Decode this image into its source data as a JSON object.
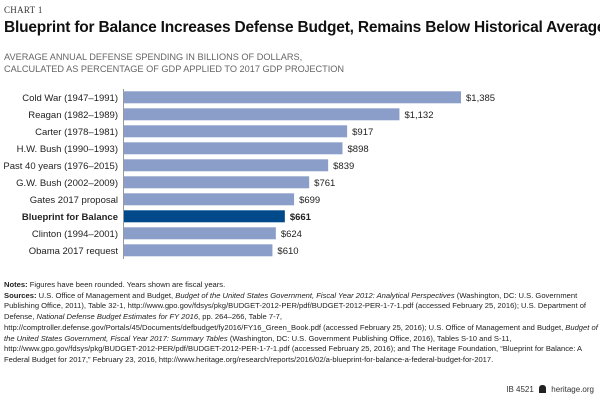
{
  "kicker": "CHART 1",
  "chart_data": {
    "type": "bar",
    "orientation": "horizontal",
    "title": "Blueprint for Balance Increases Defense Budget, Remains Below Historical Averages",
    "subtitle_lines": [
      "AVERAGE ANNUAL DEFENSE SPENDING IN BILLIONS OF DOLLARS,",
      "CALCULATED AS PERCENTAGE OF GDP APPLIED TO 2017 GDP PROJECTION"
    ],
    "categories": [
      "Cold War (1947–1991)",
      "Reagan (1982–1989)",
      "Carter (1978–1981)",
      "H.W. Bush (1990–1993)",
      "Past 40 years (1976–2015)",
      "G.W. Bush (2002–2009)",
      "Gates 2017 proposal",
      "Blueprint for Balance",
      "Clinton (1994–2001)",
      "Obama 2017 request"
    ],
    "values": [
      1385,
      1132,
      917,
      898,
      839,
      761,
      699,
      661,
      624,
      610
    ],
    "data_labels": [
      "$1,385",
      "$1,132",
      "$917",
      "$898",
      "$839",
      "$761",
      "$699",
      "$661",
      "$624",
      "$610"
    ],
    "highlight_category": "Blueprint for Balance",
    "xlim": [
      0,
      1385
    ],
    "grid": false,
    "colors": {
      "bar": "#8b9ec9",
      "highlight": "#004a8c"
    }
  },
  "notes": {
    "notes_label": "Notes:",
    "notes_text": " Figures have been rounded. Years shown are fiscal years.",
    "sources_label": "Sources:",
    "s1": " U.S. Office of Management and Budget, ",
    "s1i": "Budget of the United States Government, Fiscal Year 2012: Analytical Perspectives",
    "s2": " (Washington, DC: U.S. Government Publishing Office, 2011), Table 32-1, http://www.gpo.gov/fdsys/pkg/BUDGET-2012-PER/pdf/BUDGET-2012-PER-1-7-1.pdf (accessed February 25, 2016); U.S. Department of Defense, ",
    "s2i": "National Defense Budget Estimates for FY 2016",
    "s3": ", pp. 264–266, Table 7-7, http://comptroller.defense.gov/Portals/45/Documents/defbudget/fy2016/FY16_Green_Book.pdf (accessed February 25, 2016); U.S. Office of Management and Budget, ",
    "s3i": "Budget of the United States Government, Fiscal Year 2017: Summary Tables",
    "s4": " (Washington, DC: U.S. Government Publishing Office, 2016), Tables S-10 and S-11, http://www.gpo.gov/fdsys/pkg/BUDGET-2012-PER/pdf/BUDGET-2012-PER-1-7-1.pdf (accessed February 25, 2016); and The Heritage Foundation, “Blueprint for Balance: A Federal Budget for 2017,” February 23, 2016, http://www.heritage.org/research/reports/2016/02/a-blueprint-for-balance-a-federal-budget-for-2017."
  },
  "footer": {
    "id": "IB 4521",
    "logo_icon": "liberty-bell-icon",
    "site": "heritage.org"
  }
}
